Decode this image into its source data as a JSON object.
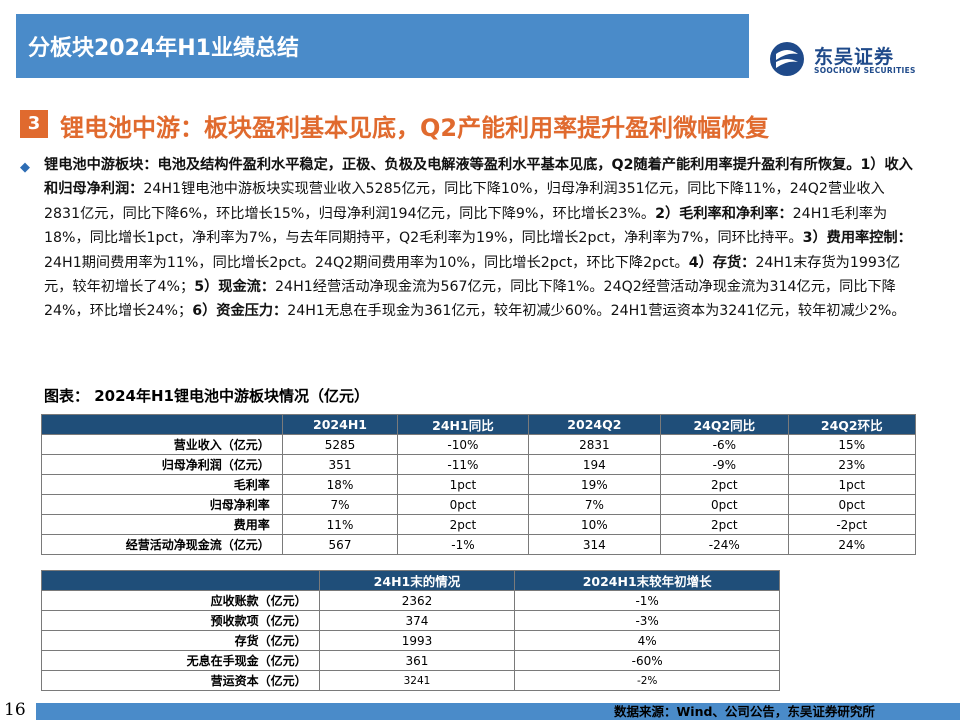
{
  "header": {
    "title": "分板块2024年H1业绩总结",
    "logo_cn": "东吴证券",
    "logo_en": "SOOCHOW SECURITIES"
  },
  "section": {
    "number": "3",
    "title": "锂电池中游：板块盈利基本见底，Q2产能利用率提升盈利微幅恢复"
  },
  "body": {
    "p1_bold": "锂电池中游板块：电池及结构件盈利水平稳定，正极、负极及电解液等盈利水平基本见底，Q2随着产能利用率提升盈利有所恢复。",
    "s1_bold": "1）收入和归母净利润：",
    "s1_text": "24H1锂电池中游板块实现营业收入5285亿元，同比下降10%，归母净利润351亿元，同比下降11%，24Q2营业收入2831亿元，同比下降6%，环比增长15%，归母净利润194亿元，同比下降9%，环比增长23%。",
    "s2_bold": "2）毛利率和净利率：",
    "s2_text": "24H1毛利率为18%，同比增长1pct，净利率为7%，与去年同期持平，Q2毛利率为19%，同比增长2pct，净利率为7%，同环比持平。",
    "s3_bold": "3）费用率控制：",
    "s3_text": "24H1期间费用率为11%，同比增长2pct。24Q2期间费用率为10%，同比增长2pct，环比下降2pct。",
    "s4_bold": "4）存货：",
    "s4_text": "24H1末存货为1993亿元，较年初增长了4%；",
    "s5_bold": "5）现金流：",
    "s5_text": "24H1经营活动净现金流为567亿元，同比下降1%。24Q2经营活动净现金流为314亿元，同比下降24%，环比增长24%；",
    "s6_bold": "6）资金压力：",
    "s6_text": "24H1无息在手现金为361亿元，较年初减少60%。24H1营运资本为3241亿元，较年初减少2%。"
  },
  "figure": {
    "title": "图表：  2024年H1锂电池中游板块情况（亿元）"
  },
  "table1": {
    "headers": [
      "",
      "2024H1",
      "24H1同比",
      "2024Q2",
      "24Q2同比",
      "24Q2环比"
    ],
    "rows": [
      [
        "营业收入（亿元）",
        "5285",
        "-10%",
        "2831",
        "-6%",
        "15%"
      ],
      [
        "归母净利润（亿元）",
        "351",
        "-11%",
        "194",
        "-9%",
        "23%"
      ],
      [
        "毛利率",
        "18%",
        "1pct",
        "19%",
        "2pct",
        "1pct"
      ],
      [
        "归母净利率",
        "7%",
        "0pct",
        "7%",
        "0pct",
        "0pct"
      ],
      [
        "费用率",
        "11%",
        "2pct",
        "10%",
        "2pct",
        "-2pct"
      ],
      [
        "经营活动净现金流（亿元）",
        "567",
        "-1%",
        "314",
        "-24%",
        "24%"
      ]
    ]
  },
  "table2": {
    "headers": [
      "",
      "24H1末的情况",
      "2024H1末较年初增长"
    ],
    "rows": [
      [
        "应收账款（亿元）",
        "2362",
        "-1%"
      ],
      [
        "预收款项（亿元）",
        "374",
        "-3%"
      ],
      [
        "存货（亿元）",
        "1993",
        "4%"
      ],
      [
        "无息在手现金（亿元）",
        "361",
        "-60%"
      ],
      [
        "营运资本（亿元）",
        "3241",
        "-2%"
      ]
    ]
  },
  "footer": {
    "page": "16",
    "source": "数据来源：Wind、公司公告，东吴证券研究所"
  },
  "colors": {
    "header_blue": "#4a8bc9",
    "table_header": "#1f4e79",
    "accent_orange": "#e06a2e"
  }
}
